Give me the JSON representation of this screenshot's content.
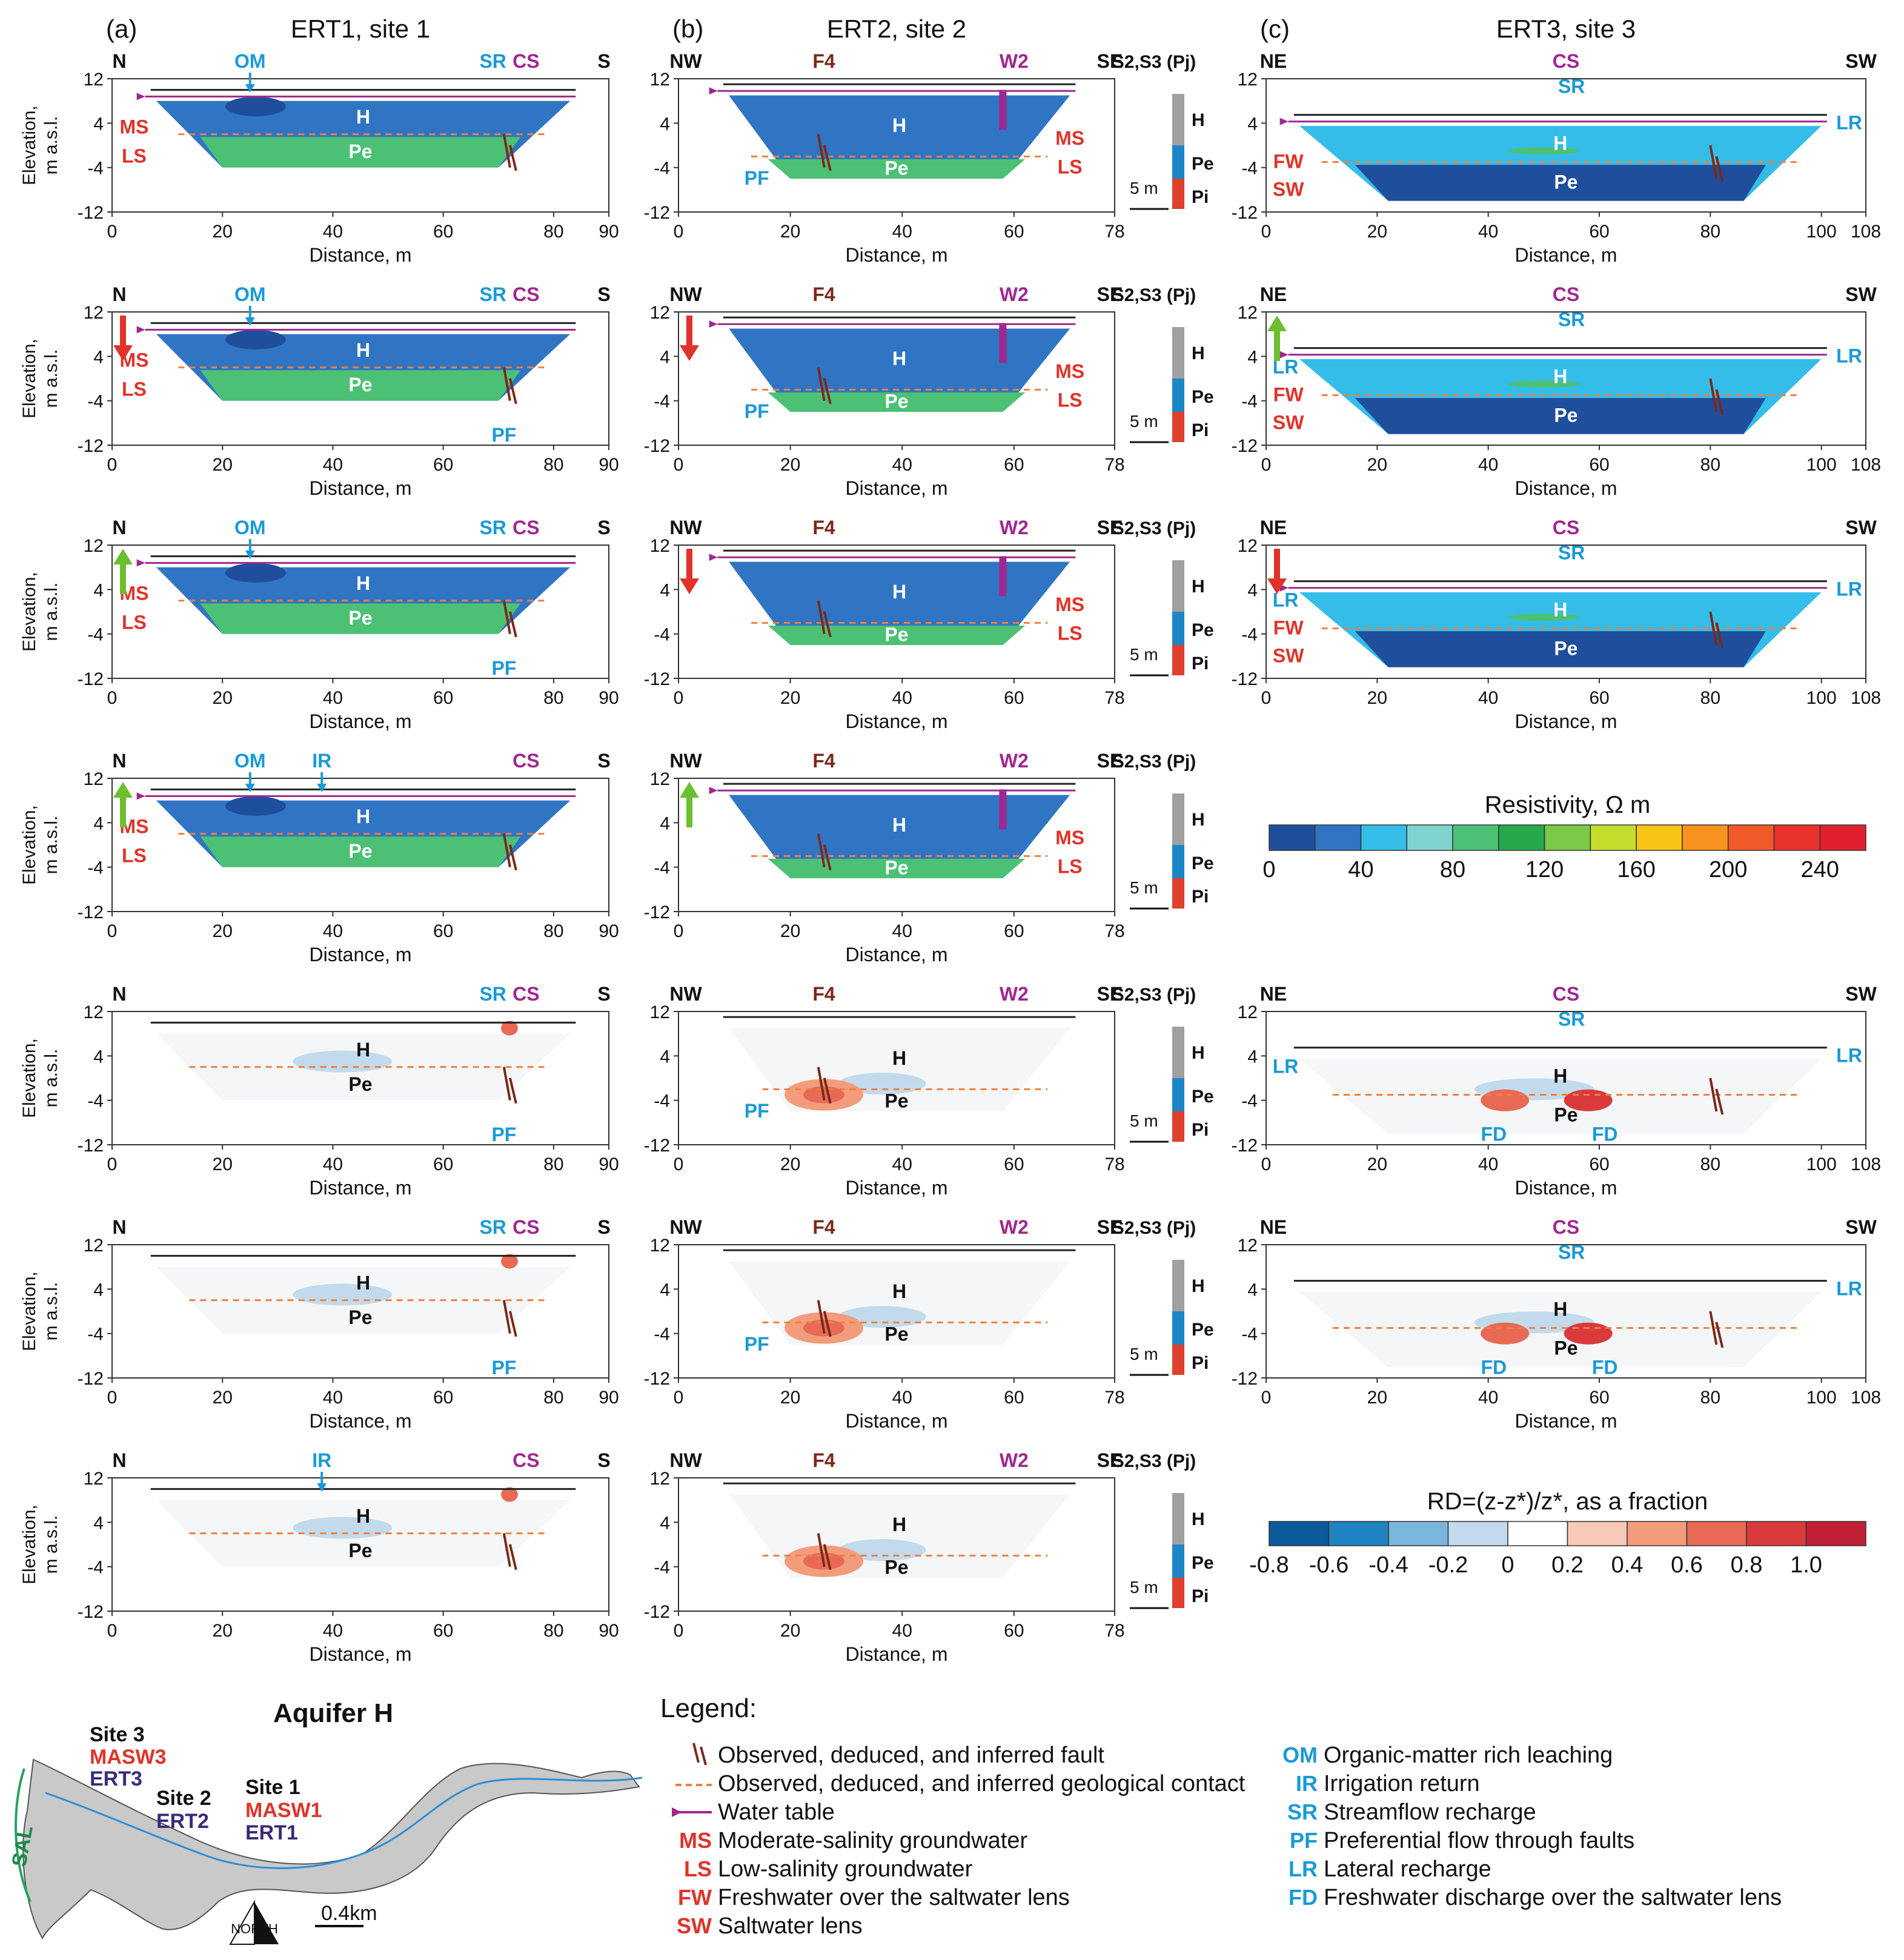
{
  "columns": [
    {
      "letter": "(a)",
      "title": "ERT1, site 1",
      "left": "N",
      "right": "S",
      "xticks": [
        "0",
        "20",
        "40",
        "60",
        "80",
        "90"
      ],
      "xtick_vals": [
        0,
        20,
        40,
        60,
        80,
        90
      ],
      "xmax": 90
    },
    {
      "letter": "(b)",
      "title": "ERT2, site 2",
      "left": "NW",
      "right": "SE",
      "xticks": [
        "0",
        "20",
        "40",
        "60",
        "78"
      ],
      "xtick_vals": [
        0,
        20,
        40,
        60,
        78
      ],
      "xmax": 78
    },
    {
      "letter": "(c)",
      "title": "ERT3, site 3",
      "left": "NE",
      "right": "SW",
      "xticks": [
        "0",
        "20",
        "40",
        "60",
        "80",
        "100",
        "108"
      ],
      "xtick_vals": [
        0,
        20,
        40,
        60,
        80,
        100,
        108
      ],
      "xmax": 108
    }
  ],
  "axis": {
    "ylabel_line1": "Elevation,",
    "ylabel_line2": "m a.s.l.",
    "yticks": [
      "12",
      "4",
      "-4",
      "-12"
    ],
    "xlabel": "Distance, m"
  },
  "markers": {
    "OM": "OM",
    "SR": "SR",
    "CS": "CS",
    "IR": "IR",
    "PF": "PF",
    "LR": "LR",
    "FD": "FD",
    "F4": "F4",
    "W2": "W2",
    "H": "H",
    "Pe": "Pe",
    "Pi": "Pi",
    "MS": "MS",
    "LS": "LS",
    "FW": "FW",
    "SW": "SW"
  },
  "strat": {
    "title": "S2,S3 (Pj)",
    "scale": "5 m"
  },
  "resistivity_bar": {
    "title": "Resistivity, Ω m",
    "ticks": [
      "0",
      "40",
      "80",
      "120",
      "160",
      "200",
      "240"
    ],
    "colors": [
      "#1f4e9c",
      "#2f75c4",
      "#35bde9",
      "#7fd3cf",
      "#4cc175",
      "#24a94b",
      "#7bc947",
      "#c6dd2e",
      "#f8c416",
      "#f7931e",
      "#ef5a28",
      "#e8322a",
      "#e0202f"
    ]
  },
  "rd_bar": {
    "title": "RD=(z-z*)/z*, as a fraction",
    "ticks": [
      "-0.8",
      "-0.6",
      "-0.4",
      "-0.2",
      "0",
      "0.2",
      "0.4",
      "0.6",
      "0.8",
      "1.0"
    ],
    "colors": [
      "#0a5a9c",
      "#1f83c3",
      "#7ab6dc",
      "#c2dbec",
      "#ffffff",
      "#f7c9b6",
      "#f29c7c",
      "#e86a55",
      "#da3a3b",
      "#c11f35"
    ]
  },
  "map": {
    "title": "Aquifer H",
    "site3": "Site 3",
    "masw3": "MASW3",
    "ert3": "ERT3",
    "site2": "Site 2",
    "ert2": "ERT2",
    "site1": "Site 1",
    "masw1": "MASW1",
    "ert1": "ERT1",
    "sal": "SAL",
    "north": "NORTH",
    "scale": "0.4km"
  },
  "legend": {
    "title": "Legend:",
    "left": [
      {
        "abbr": "",
        "text": "Observed, deduced, and inferred fault"
      },
      {
        "abbr": "",
        "text": "Observed, deduced, and inferred geological contact"
      },
      {
        "abbr": "",
        "text": "Water table"
      },
      {
        "abbr": "MS",
        "text": "Moderate-salinity groundwater"
      },
      {
        "abbr": "LS",
        "text": "Low-salinity groundwater"
      },
      {
        "abbr": "FW",
        "text": "Freshwater over the saltwater lens"
      },
      {
        "abbr": "SW",
        "text": "Saltwater lens"
      }
    ],
    "right": [
      {
        "abbr": "OM",
        "text": "Organic-matter rich leaching"
      },
      {
        "abbr": "IR",
        "text": "Irrigation return"
      },
      {
        "abbr": "SR",
        "text": "Streamflow recharge"
      },
      {
        "abbr": "PF",
        "text": "Preferential flow through faults"
      },
      {
        "abbr": "LR",
        "text": "Lateral recharge"
      },
      {
        "abbr": "FD",
        "text": "Freshwater discharge over the saltwater lens"
      }
    ]
  }
}
